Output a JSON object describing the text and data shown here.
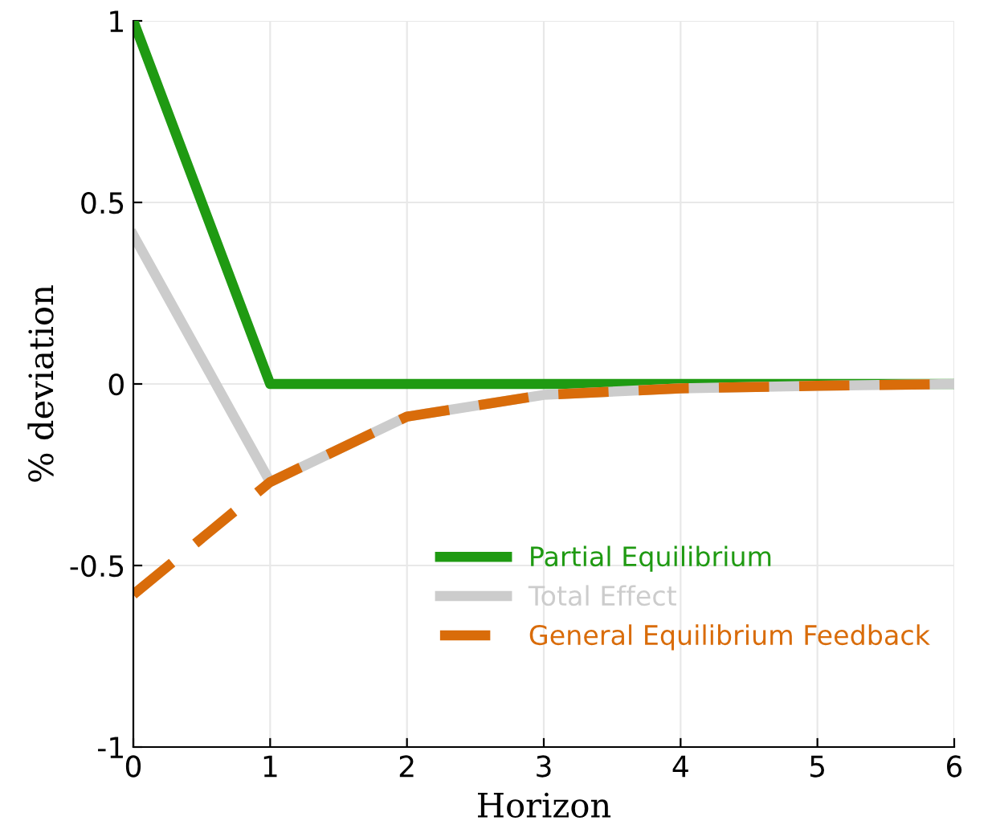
{
  "chart_data": {
    "type": "line",
    "xlabel": "Horizon",
    "ylabel": "% deviation",
    "x": [
      0,
      1,
      2,
      3,
      4,
      5,
      6
    ],
    "series": [
      {
        "name": "Partial Equilibrium",
        "color": "#1f9a12",
        "values": [
          1,
          0,
          0,
          0,
          0,
          0,
          0
        ]
      },
      {
        "name": "Total Effect",
        "color": "#cccccc",
        "values": [
          0.41,
          -0.27,
          -0.09,
          -0.03,
          -0.012,
          -0.005,
          0
        ]
      },
      {
        "name": "General Equilibrium Feedback",
        "color": "#d96c0a",
        "line_style": "dashed",
        "values": [
          -0.58,
          -0.27,
          -0.09,
          -0.03,
          -0.012,
          -0.005,
          0
        ]
      }
    ],
    "xlim": [
      0,
      6
    ],
    "ylim": [
      -1,
      1
    ],
    "xticks": [
      0,
      1,
      2,
      3,
      4,
      5,
      6
    ],
    "yticks": [
      -1,
      -0.5,
      0,
      0.5,
      1
    ],
    "grid": true,
    "legend": "lower right"
  }
}
